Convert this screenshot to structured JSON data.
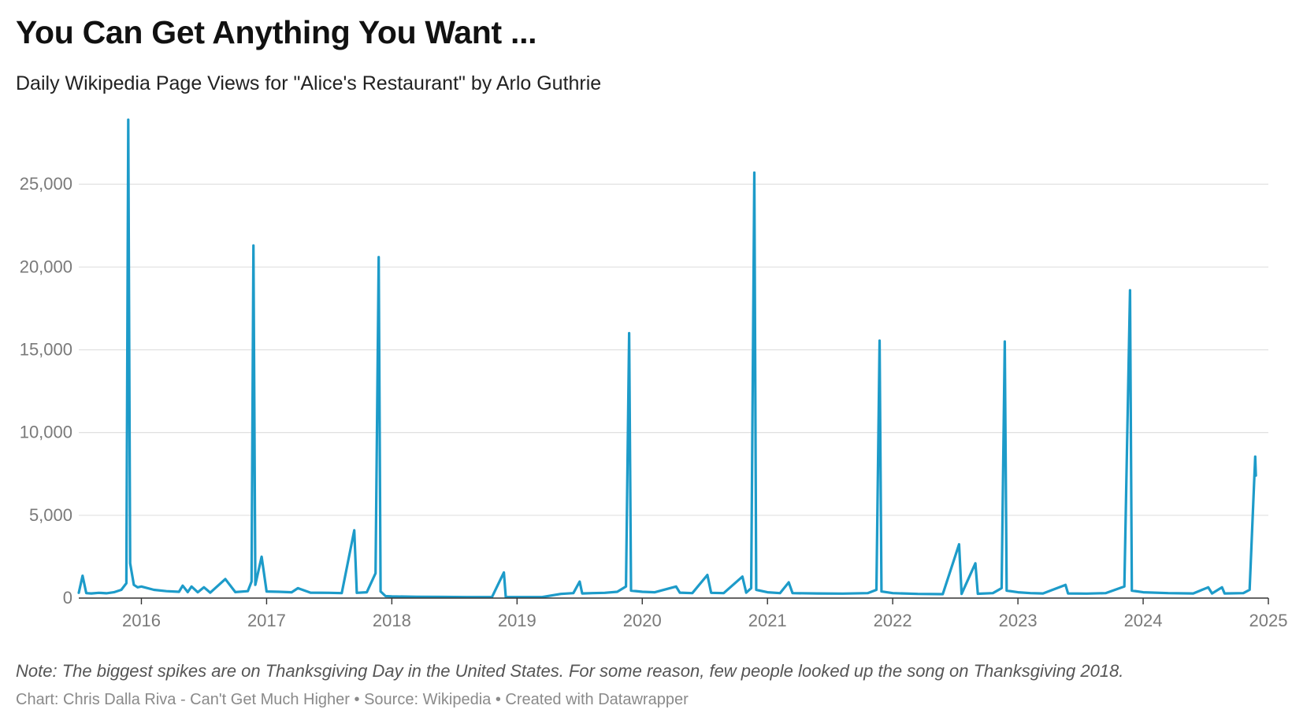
{
  "header": {
    "title": "You Can Get Anything You Want ...",
    "subtitle": "Daily Wikipedia Page Views for \"Alice's Restaurant\" by Arlo Guthrie"
  },
  "footer": {
    "note": "Note: The biggest spikes are on Thanksgiving Day in the United States. For some reason, few people looked up the song on Thanksgiving 2018.",
    "credit_chart": "Chart: Chris Dalla Riva - Can't Get Much Higher",
    "separator": " • ",
    "credit_source": "Source: Wikipedia",
    "credit_tool": "Created with Datawrapper"
  },
  "colors": {
    "line": "#1d9bc9",
    "grid": "#e0e0e0",
    "axis": "#333333",
    "tick_text": "#7a7a7a"
  },
  "chart_data": {
    "type": "line",
    "title": "You Can Get Anything You Want ...",
    "subtitle": "Daily Wikipedia Page Views for \"Alice's Restaurant\" by Arlo Guthrie",
    "xlabel": "",
    "ylabel": "",
    "xlim": [
      2015.5,
      2025.0
    ],
    "ylim": [
      0,
      29000
    ],
    "y_ticks": [
      0,
      5000,
      10000,
      15000,
      20000,
      25000
    ],
    "y_tick_labels": [
      "0",
      "5,000",
      "10,000",
      "15,000",
      "20,000",
      "25,000"
    ],
    "x_ticks": [
      2016,
      2017,
      2018,
      2019,
      2020,
      2021,
      2022,
      2023,
      2024,
      2025
    ],
    "x_tick_labels": [
      "2016",
      "2017",
      "2018",
      "2019",
      "2020",
      "2021",
      "2022",
      "2023",
      "2024",
      "2025"
    ],
    "grid": true,
    "legend": "none",
    "series": [
      {
        "values_note": "",
        "points": [
          [
            2015.5,
            320
          ],
          [
            2015.53,
            1350
          ],
          [
            2015.56,
            300
          ],
          [
            2015.6,
            280
          ],
          [
            2015.66,
            320
          ],
          [
            2015.72,
            290
          ],
          [
            2015.78,
            350
          ],
          [
            2015.84,
            500
          ],
          [
            2015.88,
            900
          ],
          [
            2015.895,
            28900
          ],
          [
            2015.91,
            2100
          ],
          [
            2015.94,
            800
          ],
          [
            2015.97,
            650
          ],
          [
            2016.0,
            700
          ],
          [
            2016.1,
            500
          ],
          [
            2016.2,
            420
          ],
          [
            2016.3,
            380
          ],
          [
            2016.33,
            750
          ],
          [
            2016.37,
            360
          ],
          [
            2016.4,
            700
          ],
          [
            2016.45,
            350
          ],
          [
            2016.5,
            650
          ],
          [
            2016.55,
            330
          ],
          [
            2016.67,
            1150
          ],
          [
            2016.75,
            360
          ],
          [
            2016.85,
            420
          ],
          [
            2016.88,
            1000
          ],
          [
            2016.895,
            21300
          ],
          [
            2016.91,
            800
          ],
          [
            2016.96,
            2500
          ],
          [
            2017.0,
            400
          ],
          [
            2017.1,
            380
          ],
          [
            2017.2,
            350
          ],
          [
            2017.25,
            600
          ],
          [
            2017.35,
            330
          ],
          [
            2017.5,
            320
          ],
          [
            2017.6,
            300
          ],
          [
            2017.7,
            4100
          ],
          [
            2017.72,
            320
          ],
          [
            2017.8,
            350
          ],
          [
            2017.87,
            1500
          ],
          [
            2017.895,
            20600
          ],
          [
            2017.91,
            400
          ],
          [
            2017.95,
            120
          ],
          [
            2018.0,
            100
          ],
          [
            2018.2,
            80
          ],
          [
            2018.4,
            70
          ],
          [
            2018.6,
            60
          ],
          [
            2018.8,
            60
          ],
          [
            2018.895,
            1550
          ],
          [
            2018.91,
            60
          ],
          [
            2019.0,
            60
          ],
          [
            2019.2,
            60
          ],
          [
            2019.35,
            250
          ],
          [
            2019.45,
            300
          ],
          [
            2019.5,
            1000
          ],
          [
            2019.52,
            280
          ],
          [
            2019.6,
            300
          ],
          [
            2019.7,
            320
          ],
          [
            2019.8,
            380
          ],
          [
            2019.87,
            700
          ],
          [
            2019.895,
            16000
          ],
          [
            2019.91,
            450
          ],
          [
            2020.0,
            380
          ],
          [
            2020.1,
            350
          ],
          [
            2020.27,
            700
          ],
          [
            2020.3,
            330
          ],
          [
            2020.4,
            300
          ],
          [
            2020.52,
            1400
          ],
          [
            2020.55,
            320
          ],
          [
            2020.65,
            300
          ],
          [
            2020.8,
            1300
          ],
          [
            2020.83,
            330
          ],
          [
            2020.87,
            600
          ],
          [
            2020.895,
            25700
          ],
          [
            2020.91,
            500
          ],
          [
            2021.0,
            350
          ],
          [
            2021.1,
            300
          ],
          [
            2021.17,
            950
          ],
          [
            2021.2,
            300
          ],
          [
            2021.4,
            280
          ],
          [
            2021.6,
            270
          ],
          [
            2021.8,
            300
          ],
          [
            2021.87,
            500
          ],
          [
            2021.895,
            15550
          ],
          [
            2021.91,
            400
          ],
          [
            2022.0,
            300
          ],
          [
            2022.2,
            250
          ],
          [
            2022.4,
            240
          ],
          [
            2022.53,
            3250
          ],
          [
            2022.55,
            250
          ],
          [
            2022.66,
            2100
          ],
          [
            2022.68,
            260
          ],
          [
            2022.8,
            300
          ],
          [
            2022.87,
            600
          ],
          [
            2022.895,
            15500
          ],
          [
            2022.91,
            450
          ],
          [
            2023.0,
            350
          ],
          [
            2023.1,
            300
          ],
          [
            2023.2,
            280
          ],
          [
            2023.38,
            800
          ],
          [
            2023.4,
            280
          ],
          [
            2023.55,
            270
          ],
          [
            2023.7,
            300
          ],
          [
            2023.85,
            700
          ],
          [
            2023.895,
            18600
          ],
          [
            2023.91,
            450
          ],
          [
            2024.0,
            350
          ],
          [
            2024.2,
            300
          ],
          [
            2024.4,
            280
          ],
          [
            2024.52,
            650
          ],
          [
            2024.55,
            280
          ],
          [
            2024.63,
            650
          ],
          [
            2024.65,
            280
          ],
          [
            2024.8,
            300
          ],
          [
            2024.85,
            500
          ],
          [
            2024.895,
            8550
          ],
          [
            2024.9,
            7400
          ]
        ]
      }
    ]
  }
}
